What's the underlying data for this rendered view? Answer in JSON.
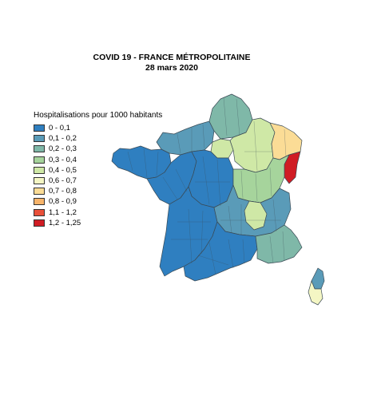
{
  "title": {
    "line1": "COVID 19 - FRANCE MÉTROPOLITAINE",
    "line2": "28 mars  2020"
  },
  "legend": {
    "title": "Hospitalisations pour 1000 habitants",
    "placement": "left",
    "items": [
      {
        "label": "0 - 0,1",
        "color": "#2f7fc0"
      },
      {
        "label": "0,1 - 0,2",
        "color": "#5a9bb8"
      },
      {
        "label": "0,2 - 0,3",
        "color": "#7fb8a8"
      },
      {
        "label": "0,3 - 0,4",
        "color": "#a6d49c"
      },
      {
        "label": "0,4 - 0,5",
        "color": "#cfe8a6"
      },
      {
        "label": "0,6 - 0,7",
        "color": "#f4f6c4"
      },
      {
        "label": "0,7 - 0,8",
        "color": "#fbdc96"
      },
      {
        "label": "0,8 - 0,9",
        "color": "#f7b46a"
      },
      {
        "label": "1,1 - 1,2",
        "color": "#e8503a"
      },
      {
        "label": "1,2 - 1,25",
        "color": "#d01c24"
      }
    ]
  },
  "map": {
    "regions": [
      {
        "id": "bretagne",
        "class": 0
      },
      {
        "id": "normandie",
        "class": 1
      },
      {
        "id": "hauts-de-france",
        "class": 2
      },
      {
        "id": "ile-de-france",
        "class": 4
      },
      {
        "id": "pays-de-la-loire",
        "class": 0
      },
      {
        "id": "centre-val-de-loire",
        "class": 0
      },
      {
        "id": "grand-est",
        "class": 4
      },
      {
        "id": "grand-est-moselle",
        "class": 6
      },
      {
        "id": "grand-est-alsace",
        "class": 9
      },
      {
        "id": "bourgogne-franche-comte",
        "class": 3
      },
      {
        "id": "nouvelle-aquitaine",
        "class": 0
      },
      {
        "id": "auvergne-rhone-alpes",
        "class": 1
      },
      {
        "id": "rhone",
        "class": 4
      },
      {
        "id": "occitanie",
        "class": 0
      },
      {
        "id": "paca",
        "class": 2
      },
      {
        "id": "corse",
        "class": 1
      },
      {
        "id": "corse-sud",
        "class": 5
      }
    ]
  }
}
